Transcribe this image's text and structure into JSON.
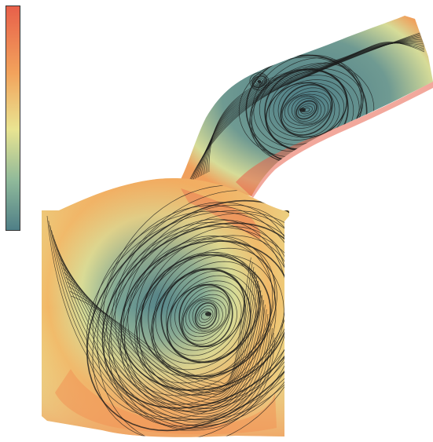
{
  "figure": {
    "kind": "streamline-flow-visualization",
    "colormap": [
      "#e8604a",
      "#f2a35c",
      "#e9e491",
      "#8fb99a",
      "#4f7f87"
    ],
    "streamline_color": "#1a1a1a",
    "colorbar_ticks_shown": false,
    "vortices": [
      {
        "region": "port",
        "label_text": ""
      },
      {
        "region": "chamber",
        "label_text": ""
      }
    ]
  }
}
